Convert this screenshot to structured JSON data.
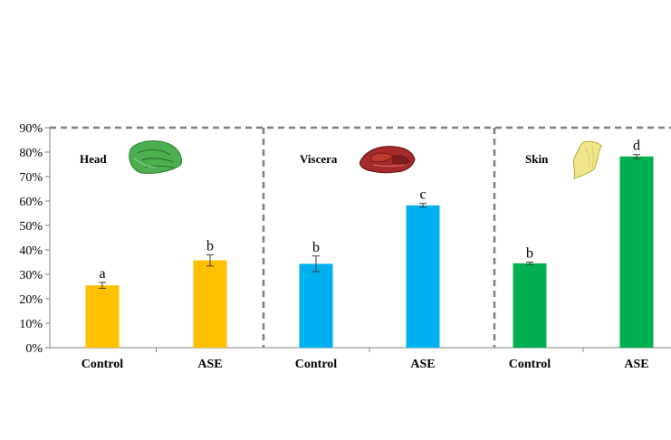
{
  "chart_data": {
    "type": "bar",
    "ylim": [
      0,
      90
    ],
    "y_ticks": [
      "0%",
      "10%",
      "20%",
      "30%",
      "40%",
      "50%",
      "60%",
      "70%",
      "80%",
      "90%"
    ],
    "grid": false,
    "groups": [
      {
        "label": "Head",
        "icon": "green-fish-head-icon",
        "bars": [
          {
            "category": "Control",
            "value": 25.5,
            "error": 1.2,
            "letter": "a",
            "color": "#FFC000"
          },
          {
            "category": "ASE",
            "value": 35.7,
            "error": 2.3,
            "letter": "b",
            "color": "#FFC000"
          }
        ]
      },
      {
        "label": "Viscera",
        "icon": "red-fish-viscera-icon",
        "bars": [
          {
            "category": "Control",
            "value": 34.3,
            "error": 3.2,
            "letter": "b",
            "color": "#00B0F0"
          },
          {
            "category": "ASE",
            "value": 58.2,
            "error": 0.8,
            "letter": "c",
            "color": "#00B0F0"
          }
        ]
      },
      {
        "label": "Skin",
        "icon": "yellow-fish-skin-icon",
        "bars": [
          {
            "category": "Control",
            "value": 34.5,
            "error": 0.5,
            "letter": "b",
            "color": "#00B050"
          },
          {
            "category": "ASE",
            "value": 78.2,
            "error": 0.8,
            "letter": "d",
            "color": "#00B050"
          }
        ]
      }
    ]
  }
}
